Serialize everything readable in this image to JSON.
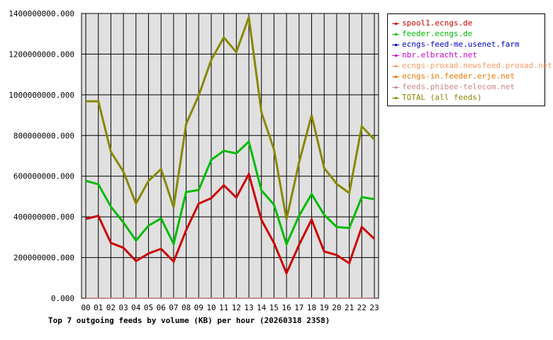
{
  "chart_data": {
    "type": "line",
    "title": "Top 7 outgoing feeds by volume (KB) per hour (20260318 2358)",
    "xlabel": "",
    "ylabel": "",
    "categories": [
      "00",
      "01",
      "02",
      "03",
      "04",
      "05",
      "06",
      "07",
      "08",
      "09",
      "10",
      "11",
      "12",
      "13",
      "14",
      "15",
      "16",
      "17",
      "18",
      "19",
      "20",
      "21",
      "22",
      "23"
    ],
    "ylim": [
      0,
      1400000000
    ],
    "yticks": [
      0,
      200000000,
      400000000,
      600000000,
      800000000,
      1000000000,
      1200000000,
      1400000000
    ],
    "ytick_labels": [
      "0.000",
      "200000000.000",
      "400000000.000",
      "600000000.000",
      "800000000.000",
      "1000000000.000",
      "1200000000.000",
      "1400000000.000"
    ],
    "grid": true,
    "legend_position": "right",
    "series": [
      {
        "name": "spool1.ecngs.de",
        "color": "#cc0000",
        "values": [
          390000000,
          405000000,
          272000000,
          248000000,
          183000000,
          220000000,
          243000000,
          180000000,
          335000000,
          465000000,
          492000000,
          555000000,
          495000000,
          610000000,
          385000000,
          272000000,
          123000000,
          262000000,
          387000000,
          230000000,
          212000000,
          172000000,
          350000000,
          292000000
        ]
      },
      {
        "name": "feeder.ecngs.de",
        "color": "#00bb00",
        "values": [
          577000000,
          560000000,
          450000000,
          372000000,
          283000000,
          357000000,
          392000000,
          267000000,
          522000000,
          532000000,
          680000000,
          725000000,
          712000000,
          770000000,
          530000000,
          460000000,
          265000000,
          405000000,
          512000000,
          410000000,
          350000000,
          345000000,
          497000000,
          487000000
        ]
      },
      {
        "name": "ecngs-feed-me.usenet.farm",
        "color": "#0000cc",
        "values": [
          0,
          0,
          0,
          0,
          0,
          0,
          0,
          0,
          0,
          0,
          0,
          0,
          0,
          0,
          0,
          0,
          0,
          0,
          0,
          0,
          0,
          0,
          0,
          0
        ]
      },
      {
        "name": "nbr.elbracht.net",
        "color": "#cc00cc",
        "values": [
          0,
          0,
          0,
          0,
          0,
          0,
          0,
          0,
          0,
          0,
          0,
          0,
          0,
          0,
          0,
          0,
          0,
          0,
          0,
          0,
          0,
          0,
          0,
          0
        ]
      },
      {
        "name": "ecngs-proxad.newsfeed.proxad.net",
        "color": "#ff9966",
        "values": [
          0,
          0,
          0,
          0,
          0,
          0,
          0,
          0,
          0,
          0,
          0,
          0,
          0,
          0,
          0,
          0,
          0,
          0,
          0,
          0,
          0,
          0,
          0,
          0
        ]
      },
      {
        "name": "ecngs-in.feeder.erje.net",
        "color": "#ee7700",
        "values": [
          0,
          0,
          0,
          0,
          0,
          0,
          0,
          0,
          0,
          0,
          0,
          0,
          0,
          0,
          0,
          0,
          0,
          0,
          0,
          0,
          0,
          0,
          0,
          0
        ]
      },
      {
        "name": "feeds.phibee-telecom.net",
        "color": "#cc8888",
        "values": [
          0,
          0,
          0,
          0,
          0,
          0,
          0,
          0,
          0,
          0,
          0,
          0,
          0,
          0,
          0,
          0,
          0,
          0,
          0,
          0,
          0,
          0,
          0,
          0
        ]
      },
      {
        "name": "TOTAL (all feeds)",
        "color": "#888800",
        "values": [
          968000000,
          968000000,
          720000000,
          622000000,
          465000000,
          577000000,
          635000000,
          447000000,
          857000000,
          997000000,
          1172000000,
          1282000000,
          1210000000,
          1382000000,
          915000000,
          732000000,
          388000000,
          667000000,
          900000000,
          640000000,
          562000000,
          517000000,
          845000000,
          780000000
        ]
      }
    ]
  }
}
